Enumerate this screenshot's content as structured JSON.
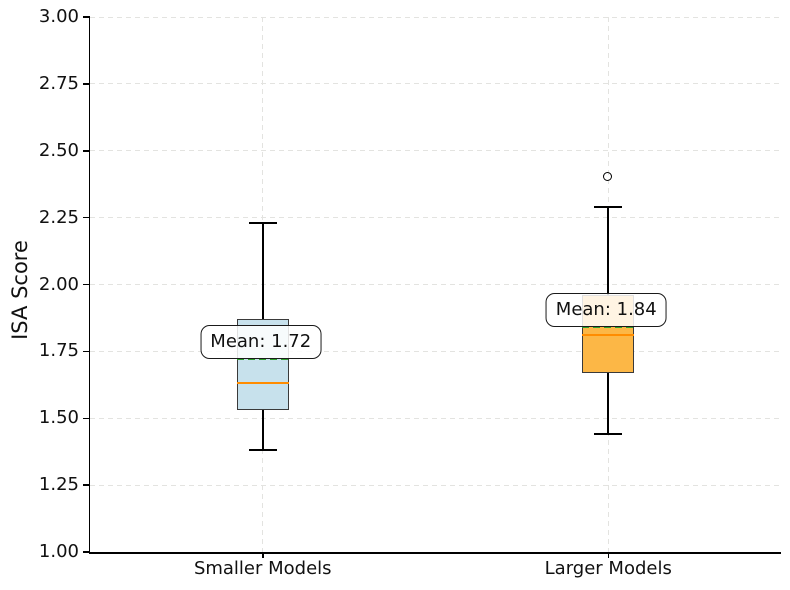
{
  "chart_data": {
    "type": "boxplot",
    "title": "",
    "xlabel": "",
    "ylabel": "ISA Score",
    "ylim": [
      1.0,
      3.0
    ],
    "grid": true,
    "legend": "none",
    "yticks": [
      {
        "value": 3.0,
        "label": "3.00"
      },
      {
        "value": 2.75,
        "label": "2.75"
      },
      {
        "value": 2.5,
        "label": "2.50"
      },
      {
        "value": 2.25,
        "label": "2.25"
      },
      {
        "value": 2.0,
        "label": "2.00"
      },
      {
        "value": 1.75,
        "label": "1.75"
      },
      {
        "value": 1.5,
        "label": "1.50"
      },
      {
        "value": 1.25,
        "label": "1.25"
      },
      {
        "value": 1.0,
        "label": "1.00"
      }
    ],
    "categories": [
      "Smaller Models",
      "Larger Models"
    ],
    "series": [
      {
        "name": "Smaller Models",
        "whisker_low": 1.38,
        "q1": 1.53,
        "median": 1.63,
        "q3": 1.87,
        "whisker_high": 2.23,
        "mean": 1.72,
        "outliers": [],
        "annotation": "Mean: 1.72",
        "box_color": "#c7e1ec"
      },
      {
        "name": "Larger Models",
        "whisker_low": 1.44,
        "q1": 1.67,
        "median": 1.81,
        "q3": 1.96,
        "whisker_high": 2.29,
        "mean": 1.84,
        "outliers": [
          2.4
        ],
        "annotation": "Mean: 1.84",
        "box_color": "#fcb746"
      }
    ],
    "style": {
      "median_color": "#ff8c00",
      "mean_color": "#2ca02c",
      "grid_color": "#e3e3e0",
      "box_edge_color": "#3a3a3a",
      "whisker_color": "#000000"
    }
  }
}
